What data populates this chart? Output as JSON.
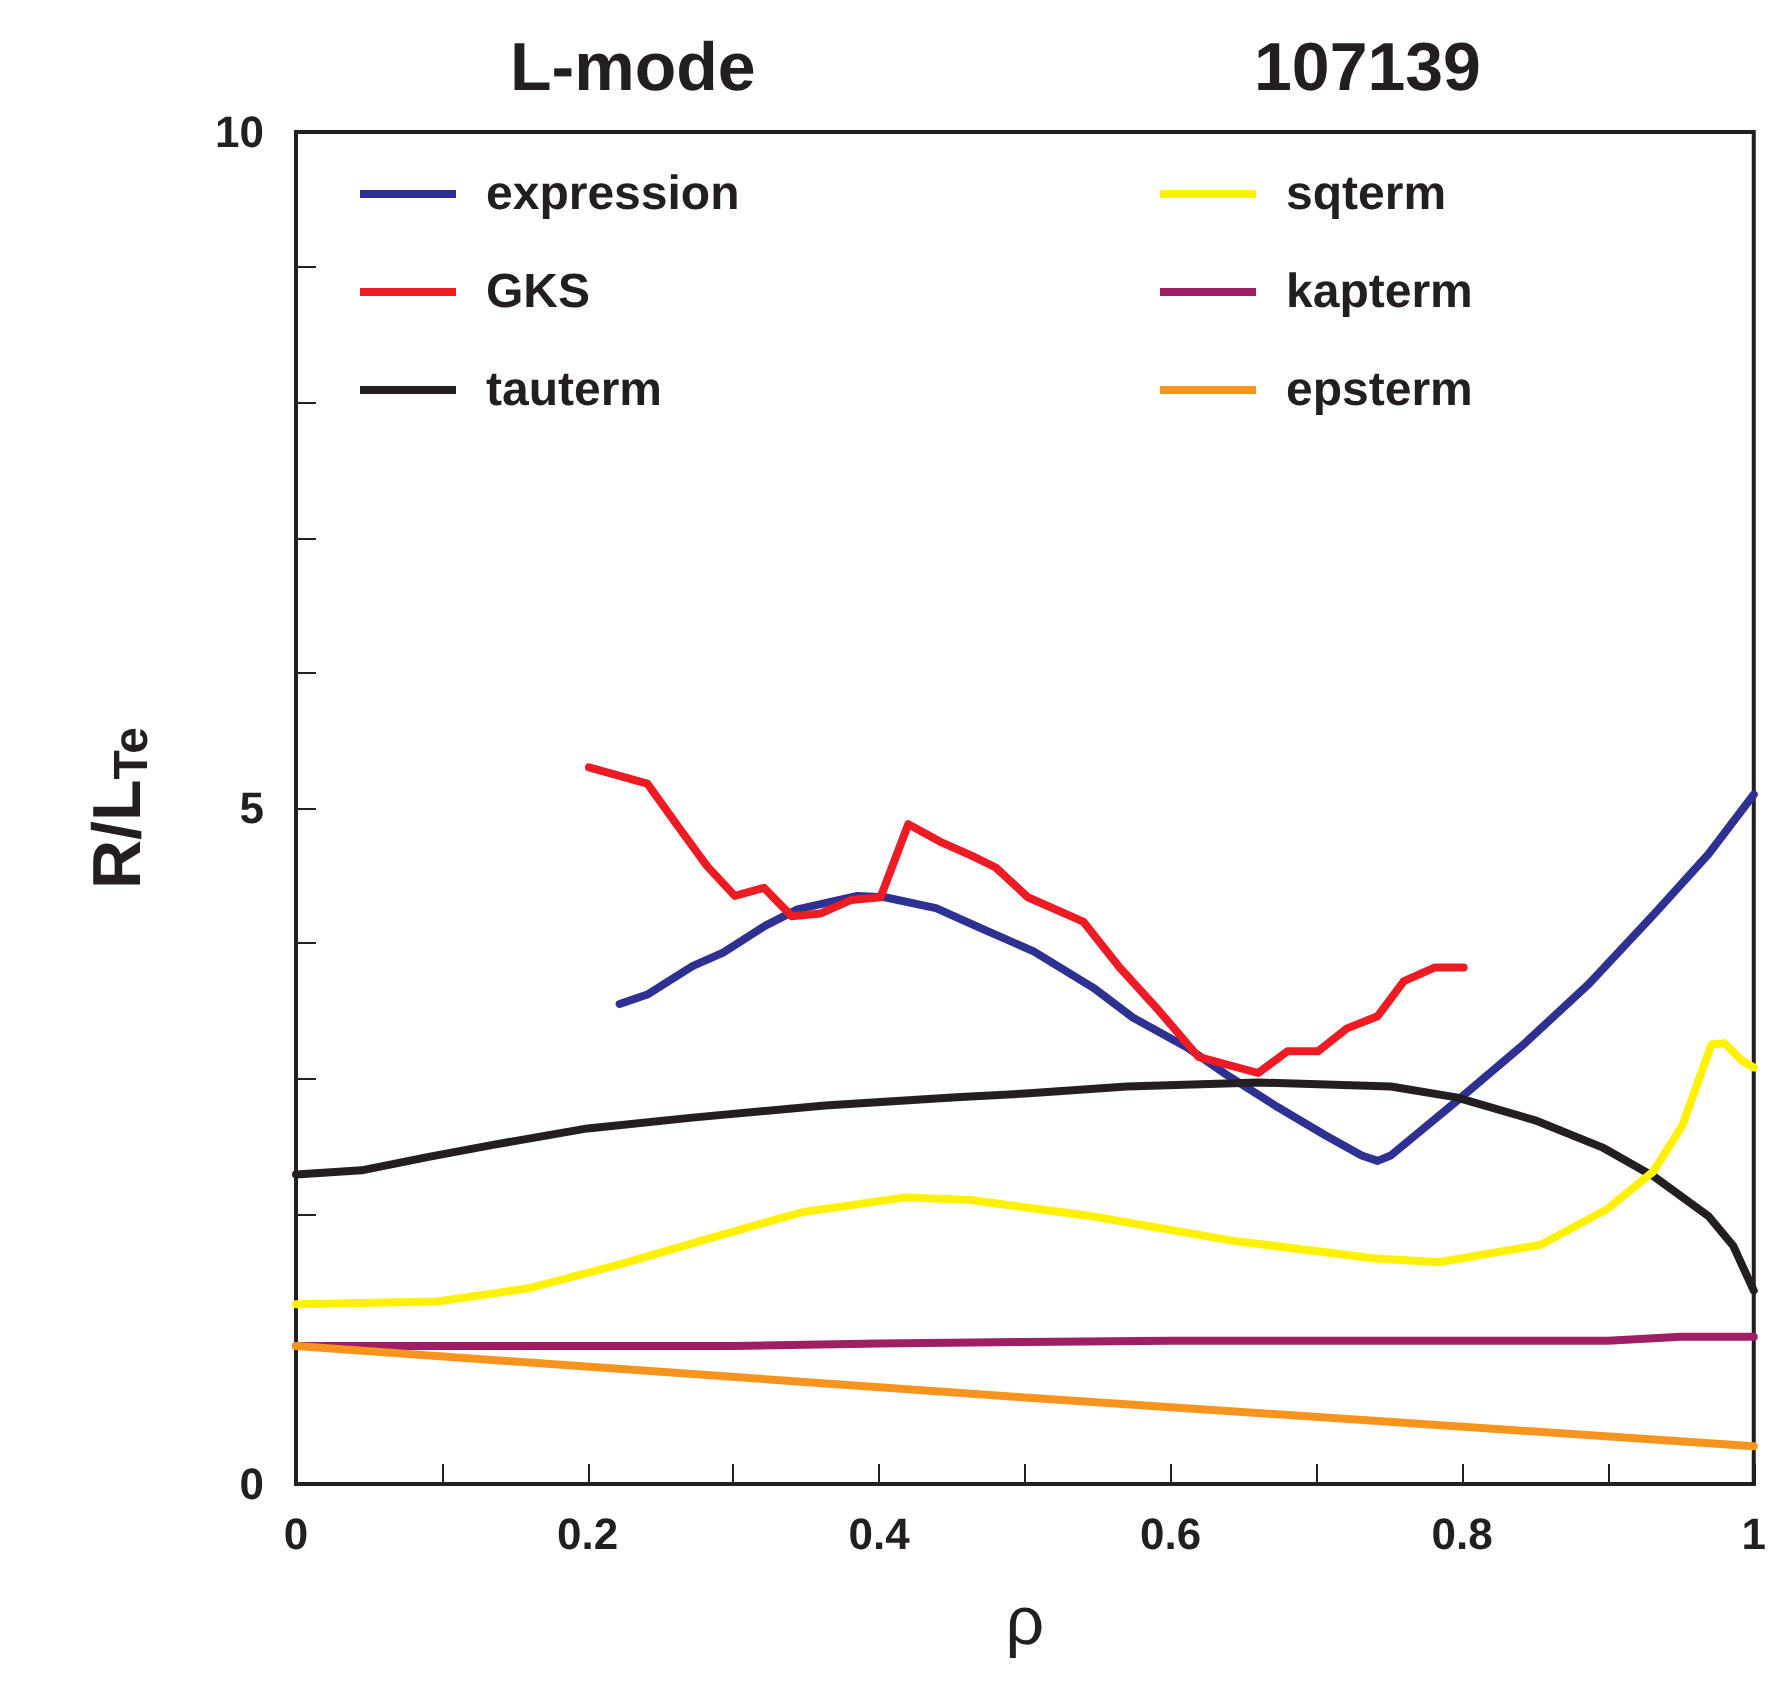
{
  "chart_data": {
    "type": "line",
    "title": "L-mode",
    "subtitle": "107139",
    "xlabel": "ρ",
    "ylabel": "R/L$_{Te}$",
    "xlim": [
      0,
      1
    ],
    "xticks": [
      0,
      {
        "value": 0.1,
        "label": null
      },
      0.2,
      {
        "value": 0.3,
        "label": null
      },
      0.4,
      {
        "value": 0.5,
        "label": null
      },
      0.6,
      {
        "value": 0.7,
        "label": null
      },
      0.8,
      {
        "value": 0.9,
        "label": null
      },
      1
    ],
    "ylim": [
      0,
      10
    ],
    "yticks": [
      0,
      {
        "value": 1,
        "label": null
      },
      {
        "value": 2,
        "label": null
      },
      {
        "value": 3,
        "label": null
      },
      {
        "value": 4,
        "label": null
      },
      5,
      {
        "value": 6,
        "label": null
      },
      {
        "value": 7,
        "label": null
      },
      {
        "value": 8,
        "label": null
      },
      {
        "value": 9,
        "label": null
      },
      10
    ],
    "grid": false,
    "legend": "top",
    "marker": "none",
    "line_style": "solid",
    "series": [
      {
        "name": "expression",
        "color": "#2e3192",
        "x": [
          0.222,
          0.241,
          0.272,
          0.293,
          0.322,
          0.344,
          0.385,
          0.404,
          0.439,
          0.472,
          0.506,
          0.547,
          0.574,
          0.611,
          0.638,
          0.673,
          0.706,
          0.731,
          0.742,
          0.751,
          0.796,
          0.842,
          0.887,
          0.932,
          0.969,
          1.0
        ],
        "values": [
          3.55,
          3.62,
          3.83,
          3.93,
          4.13,
          4.25,
          4.35,
          4.34,
          4.26,
          4.1,
          3.94,
          3.67,
          3.45,
          3.23,
          3.03,
          2.79,
          2.58,
          2.43,
          2.39,
          2.43,
          2.83,
          3.25,
          3.7,
          4.22,
          4.66,
          5.1
        ]
      },
      {
        "name": "GKS",
        "color": "#ed1c24",
        "x": [
          0.201,
          0.241,
          0.263,
          0.282,
          0.301,
          0.321,
          0.34,
          0.36,
          0.381,
          0.401,
          0.42,
          0.442,
          0.463,
          0.48,
          0.502,
          0.54,
          0.565,
          0.592,
          0.619,
          0.66,
          0.68,
          0.701,
          0.721,
          0.742,
          0.76,
          0.781,
          0.801
        ],
        "values": [
          5.3,
          5.18,
          4.85,
          4.57,
          4.35,
          4.41,
          4.2,
          4.22,
          4.32,
          4.34,
          4.88,
          4.75,
          4.65,
          4.56,
          4.34,
          4.16,
          3.82,
          3.5,
          3.16,
          3.04,
          3.2,
          3.2,
          3.37,
          3.46,
          3.72,
          3.82,
          3.82
        ]
      },
      {
        "name": "tauterm",
        "color": "#231f20",
        "x": [
          0,
          0.045,
          0.091,
          0.136,
          0.2,
          0.272,
          0.363,
          0.453,
          0.503,
          0.57,
          0.66,
          0.751,
          0.796,
          0.85,
          0.896,
          0.932,
          0.969,
          0.986,
          1.0
        ],
        "values": [
          2.29,
          2.32,
          2.42,
          2.51,
          2.63,
          2.71,
          2.8,
          2.86,
          2.89,
          2.94,
          2.97,
          2.94,
          2.86,
          2.69,
          2.49,
          2.27,
          1.98,
          1.76,
          1.43
        ]
      },
      {
        "name": "sqterm",
        "color": "#fff200",
        "x": [
          0,
          0.097,
          0.161,
          0.224,
          0.288,
          0.347,
          0.418,
          0.463,
          0.546,
          0.642,
          0.739,
          0.784,
          0.854,
          0.899,
          0.931,
          0.951,
          0.971,
          0.98,
          0.992,
          1.0
        ],
        "values": [
          1.33,
          1.35,
          1.45,
          1.63,
          1.83,
          2.01,
          2.12,
          2.1,
          1.98,
          1.8,
          1.67,
          1.64,
          1.77,
          2.03,
          2.31,
          2.65,
          3.25,
          3.26,
          3.13,
          3.08
        ]
      },
      {
        "name": "kapterm",
        "color": "#9e1f63",
        "x": [
          0,
          0.3,
          0.4,
          0.5,
          0.6,
          0.8,
          0.9,
          0.95,
          1.0
        ],
        "values": [
          1.02,
          1.02,
          1.04,
          1.05,
          1.06,
          1.06,
          1.06,
          1.09,
          1.09
        ]
      },
      {
        "name": "epsterm",
        "color": "#f7941d",
        "x": [
          0,
          0.5,
          1.0
        ],
        "values": [
          1.02,
          0.64,
          0.28
        ]
      }
    ]
  }
}
